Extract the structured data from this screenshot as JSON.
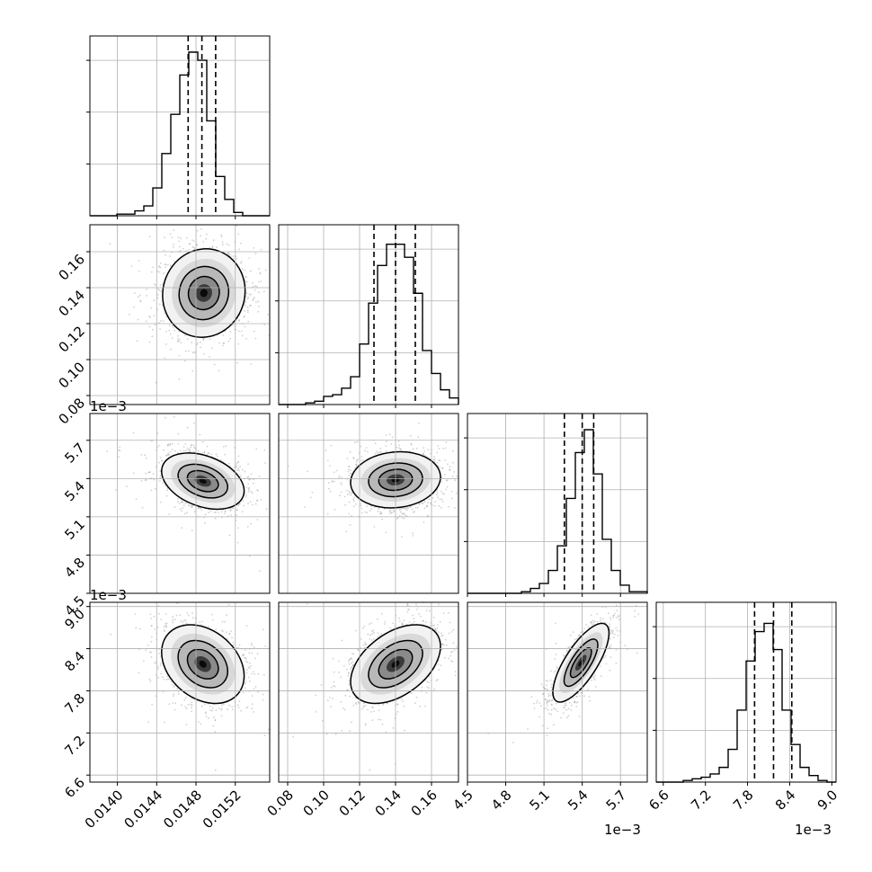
{
  "chart_data": {
    "type": "corner",
    "grid": true,
    "parameters": [
      {
        "range": [
          0.01372,
          0.01555
        ],
        "ticks": [
          0.014,
          0.0144,
          0.0148,
          0.0152
        ],
        "tick_labels": [
          "0.0140",
          "0.0144",
          "0.0148",
          "0.0152"
        ],
        "offset_label": "",
        "quantiles": [
          0.01472,
          0.01486,
          0.015
        ],
        "hist": [
          0.0,
          0.0,
          0.0,
          0.01,
          0.01,
          0.03,
          0.06,
          0.17,
          0.38,
          0.62,
          0.86,
          1.0,
          0.95,
          0.58,
          0.24,
          0.1,
          0.02,
          0.0,
          0.0,
          0.0
        ]
      },
      {
        "range": [
          0.075,
          0.175
        ],
        "ticks": [
          0.08,
          0.1,
          0.12,
          0.14,
          0.16
        ],
        "tick_labels": [
          "0.08",
          "0.10",
          "0.12",
          "0.14",
          "0.16"
        ],
        "offset_label": "",
        "quantiles": [
          0.128,
          0.14,
          0.151
        ],
        "hist": [
          0.0,
          0.0,
          0.0,
          0.01,
          0.02,
          0.05,
          0.06,
          0.1,
          0.17,
          0.37,
          0.62,
          0.85,
          0.98,
          0.98,
          0.9,
          0.68,
          0.33,
          0.19,
          0.09,
          0.04
        ]
      },
      {
        "range": [
          4.5,
          5.91
        ],
        "ticks": [
          4.5,
          4.8,
          5.1,
          5.4,
          5.7
        ],
        "tick_labels": [
          "4.5",
          "4.8",
          "5.1",
          "5.4",
          "5.7"
        ],
        "offset_label": "1e−3",
        "quantiles": [
          5.26,
          5.4,
          5.49
        ],
        "hist": [
          0.0,
          0.0,
          0.0,
          0.0,
          0.0,
          0.0,
          0.01,
          0.03,
          0.06,
          0.14,
          0.29,
          0.58,
          0.86,
          1.0,
          0.73,
          0.33,
          0.14,
          0.05,
          0.01,
          0.01
        ]
      },
      {
        "range": [
          6.5,
          9.06
        ],
        "ticks": [
          6.6,
          7.2,
          7.8,
          8.4,
          9.0
        ],
        "tick_labels": [
          "6.6",
          "7.2",
          "7.8",
          "8.4",
          "9.0"
        ],
        "offset_label": "1e−3",
        "quantiles": [
          7.9,
          8.17,
          8.43
        ],
        "hist": [
          0.0,
          0.0,
          0.0,
          0.01,
          0.02,
          0.03,
          0.05,
          0.09,
          0.2,
          0.44,
          0.74,
          0.92,
          0.97,
          0.81,
          0.44,
          0.23,
          0.09,
          0.04,
          0.01,
          0.0
        ]
      }
    ],
    "pairs": [
      {
        "row": 1,
        "col": 0,
        "mean": [
          0.01488,
          0.137
        ],
        "sd": [
          0.00021,
          0.0123
        ],
        "rho": 0.05
      },
      {
        "row": 2,
        "col": 0,
        "mean": [
          0.01487,
          5.38
        ],
        "sd": [
          0.00021,
          0.11
        ],
        "rho": -0.35
      },
      {
        "row": 2,
        "col": 1,
        "mean": [
          0.14,
          5.39
        ],
        "sd": [
          0.0125,
          0.11
        ],
        "rho": 0.1
      },
      {
        "row": 3,
        "col": 0,
        "mean": [
          0.01487,
          8.18
        ],
        "sd": [
          0.00021,
          0.28
        ],
        "rho": -0.3
      },
      {
        "row": 3,
        "col": 1,
        "mean": [
          0.14,
          8.18
        ],
        "sd": [
          0.0125,
          0.28
        ],
        "rho": 0.45
      },
      {
        "row": 3,
        "col": 2,
        "mean": [
          5.39,
          8.2
        ],
        "sd": [
          0.11,
          0.28
        ],
        "rho": 0.75
      }
    ]
  },
  "colors": {
    "line": "#000000",
    "grid": "#b0b0b0",
    "scatter": "#9a9a9a"
  }
}
